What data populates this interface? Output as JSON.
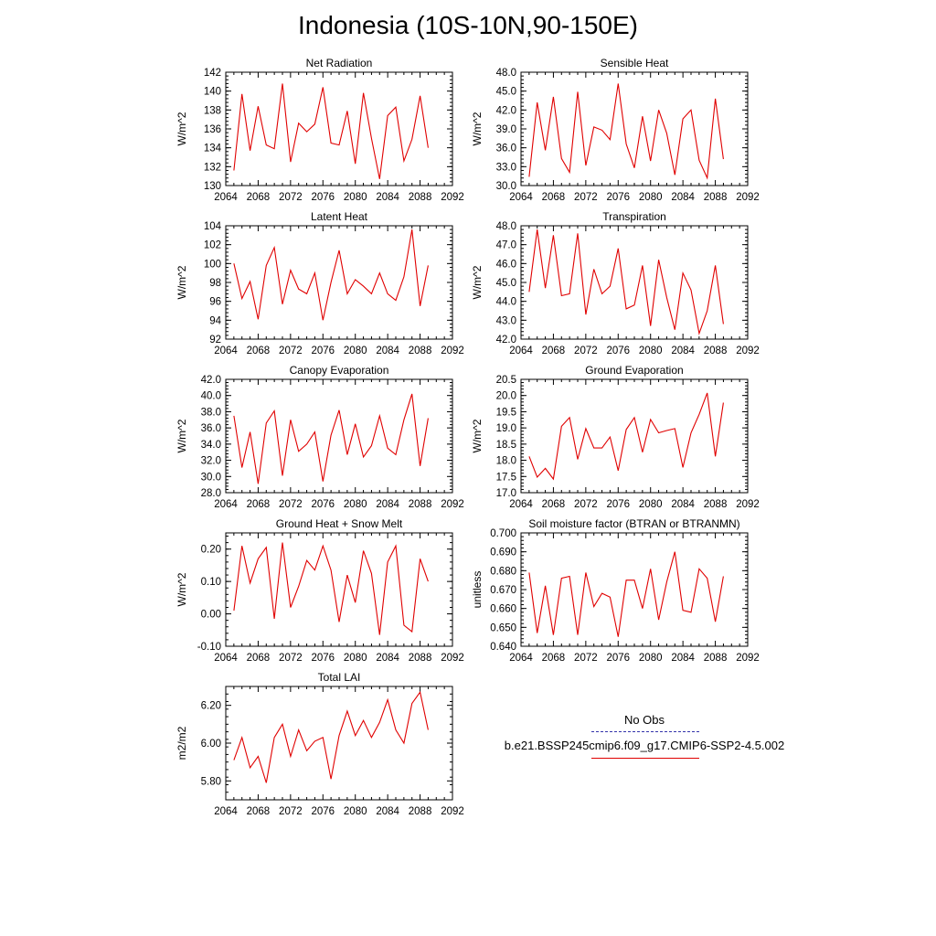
{
  "title": "Indonesia (10S-10N,90-150E)",
  "colors": {
    "model": "#e00000",
    "obs": "#3333aa",
    "axes": "#000000"
  },
  "chart_data": [
    {
      "type": "line",
      "title": "Net Radiation",
      "ylabel": "W/m^2",
      "xlim": [
        2064,
        2092
      ],
      "xticks": [
        2064,
        2068,
        2072,
        2076,
        2080,
        2084,
        2088,
        2092
      ],
      "ylim": [
        130,
        142
      ],
      "yticks": [
        "130",
        "132",
        "134",
        "136",
        "138",
        "140",
        "142"
      ],
      "x": [
        2065,
        2066,
        2067,
        2068,
        2069,
        2070,
        2071,
        2072,
        2073,
        2074,
        2075,
        2076,
        2077,
        2078,
        2079,
        2080,
        2081,
        2082,
        2083,
        2084,
        2085,
        2086,
        2087,
        2088,
        2089
      ],
      "series": [
        {
          "name": "b.e21.BSSP245cmip6.f09_g17.CMIP6-SSP2-4.5.002",
          "values": [
            131.6,
            139.7,
            133.7,
            138.4,
            134.3,
            133.9,
            140.8,
            132.5,
            136.6,
            135.7,
            136.5,
            140.4,
            134.5,
            134.3,
            137.9,
            132.3,
            139.8,
            135.0,
            130.7,
            137.4,
            138.3,
            132.6,
            134.9,
            139.5,
            134.0
          ]
        }
      ]
    },
    {
      "type": "line",
      "title": "Sensible Heat",
      "ylabel": "W/m^2",
      "xlim": [
        2064,
        2092
      ],
      "xticks": [
        2064,
        2068,
        2072,
        2076,
        2080,
        2084,
        2088,
        2092
      ],
      "ylim": [
        30,
        48
      ],
      "yticks": [
        "30.0",
        "33.0",
        "36.0",
        "39.0",
        "42.0",
        "45.0",
        "48.0"
      ],
      "x": [
        2065,
        2066,
        2067,
        2068,
        2069,
        2070,
        2071,
        2072,
        2073,
        2074,
        2075,
        2076,
        2077,
        2078,
        2079,
        2080,
        2081,
        2082,
        2083,
        2084,
        2085,
        2086,
        2087,
        2088,
        2089
      ],
      "series": [
        {
          "name": "b.e21.BSSP245cmip6.f09_g17.CMIP6-SSP2-4.5.002",
          "values": [
            31.4,
            43.2,
            35.6,
            44.1,
            34.3,
            32.1,
            44.9,
            33.2,
            39.3,
            38.8,
            37.3,
            46.2,
            36.6,
            32.8,
            41.0,
            33.9,
            42.0,
            38.3,
            31.7,
            40.6,
            42.0,
            34.0,
            31.2,
            43.8,
            34.2
          ]
        }
      ]
    },
    {
      "type": "line",
      "title": "Latent Heat",
      "ylabel": "W/m^2",
      "xlim": [
        2064,
        2092
      ],
      "xticks": [
        2064,
        2068,
        2072,
        2076,
        2080,
        2084,
        2088,
        2092
      ],
      "ylim": [
        92,
        104
      ],
      "yticks": [
        "92",
        "94",
        "96",
        "98",
        "100",
        "102",
        "104"
      ],
      "x": [
        2065,
        2066,
        2067,
        2068,
        2069,
        2070,
        2071,
        2072,
        2073,
        2074,
        2075,
        2076,
        2077,
        2078,
        2079,
        2080,
        2081,
        2082,
        2083,
        2084,
        2085,
        2086,
        2087,
        2088,
        2089
      ],
      "series": [
        {
          "name": "b.e21.BSSP245cmip6.f09_g17.CMIP6-SSP2-4.5.002",
          "values": [
            100.0,
            96.3,
            98.1,
            94.1,
            99.8,
            101.7,
            95.7,
            99.3,
            97.3,
            96.8,
            99.0,
            94.0,
            98.0,
            101.4,
            96.8,
            98.3,
            97.6,
            96.8,
            99.0,
            96.8,
            96.1,
            98.6,
            103.6,
            95.5,
            99.8
          ]
        }
      ]
    },
    {
      "type": "line",
      "title": "Transpiration",
      "ylabel": "W/m^2",
      "xlim": [
        2064,
        2092
      ],
      "xticks": [
        2064,
        2068,
        2072,
        2076,
        2080,
        2084,
        2088,
        2092
      ],
      "ylim": [
        42,
        48
      ],
      "yticks": [
        "42.0",
        "43.0",
        "44.0",
        "45.0",
        "46.0",
        "47.0",
        "48.0"
      ],
      "x": [
        2065,
        2066,
        2067,
        2068,
        2069,
        2070,
        2071,
        2072,
        2073,
        2074,
        2075,
        2076,
        2077,
        2078,
        2079,
        2080,
        2081,
        2082,
        2083,
        2084,
        2085,
        2086,
        2087,
        2088,
        2089
      ],
      "series": [
        {
          "name": "b.e21.BSSP245cmip6.f09_g17.CMIP6-SSP2-4.5.002",
          "values": [
            44.5,
            47.8,
            44.7,
            47.5,
            44.3,
            44.4,
            47.6,
            43.3,
            45.7,
            44.4,
            44.8,
            46.8,
            43.6,
            43.8,
            45.9,
            42.7,
            46.2,
            44.2,
            42.5,
            45.5,
            44.6,
            42.3,
            43.5,
            45.9,
            42.8
          ]
        }
      ]
    },
    {
      "type": "line",
      "title": "Canopy Evaporation",
      "ylabel": "W/m^2",
      "xlim": [
        2064,
        2092
      ],
      "xticks": [
        2064,
        2068,
        2072,
        2076,
        2080,
        2084,
        2088,
        2092
      ],
      "ylim": [
        28,
        42
      ],
      "yticks": [
        "28.0",
        "30.0",
        "32.0",
        "34.0",
        "36.0",
        "38.0",
        "40.0",
        "42.0"
      ],
      "x": [
        2065,
        2066,
        2067,
        2068,
        2069,
        2070,
        2071,
        2072,
        2073,
        2074,
        2075,
        2076,
        2077,
        2078,
        2079,
        2080,
        2081,
        2082,
        2083,
        2084,
        2085,
        2086,
        2087,
        2088,
        2089
      ],
      "series": [
        {
          "name": "b.e21.BSSP245cmip6.f09_g17.CMIP6-SSP2-4.5.002",
          "values": [
            37.5,
            31.1,
            35.5,
            29.1,
            36.6,
            38.1,
            30.1,
            37.0,
            33.1,
            34.0,
            35.5,
            29.4,
            35.1,
            38.2,
            32.7,
            36.5,
            32.4,
            33.8,
            37.5,
            33.5,
            32.7,
            37.0,
            40.2,
            31.3,
            37.2
          ]
        }
      ]
    },
    {
      "type": "line",
      "title": "Ground Evaporation",
      "ylabel": "W/m^2",
      "xlim": [
        2064,
        2092
      ],
      "xticks": [
        2064,
        2068,
        2072,
        2076,
        2080,
        2084,
        2088,
        2092
      ],
      "ylim": [
        17,
        20.5
      ],
      "yticks": [
        "17.0",
        "17.5",
        "18.0",
        "18.5",
        "19.0",
        "19.5",
        "20.0",
        "20.5"
      ],
      "x": [
        2065,
        2066,
        2067,
        2068,
        2069,
        2070,
        2071,
        2072,
        2073,
        2074,
        2075,
        2076,
        2077,
        2078,
        2079,
        2080,
        2081,
        2082,
        2083,
        2084,
        2085,
        2086,
        2087,
        2088,
        2089
      ],
      "series": [
        {
          "name": "b.e21.BSSP245cmip6.f09_g17.CMIP6-SSP2-4.5.002",
          "values": [
            18.12,
            17.48,
            17.75,
            17.42,
            19.05,
            19.32,
            18.03,
            18.98,
            18.38,
            18.38,
            18.72,
            17.68,
            18.95,
            19.32,
            18.25,
            19.26,
            18.85,
            18.92,
            18.98,
            17.78,
            18.85,
            19.42,
            20.08,
            18.12,
            19.78
          ]
        }
      ]
    },
    {
      "type": "line",
      "title": "Ground Heat + Snow Melt",
      "ylabel": "W/m^2",
      "xlim": [
        2064,
        2092
      ],
      "xticks": [
        2064,
        2068,
        2072,
        2076,
        2080,
        2084,
        2088,
        2092
      ],
      "ylim": [
        -0.1,
        0.25
      ],
      "yticks": [
        "-0.10",
        "0.00",
        "0.10",
        "0.20"
      ],
      "ytick_values": [
        -0.1,
        0.0,
        0.1,
        0.2
      ],
      "x": [
        2065,
        2066,
        2067,
        2068,
        2069,
        2070,
        2071,
        2072,
        2073,
        2074,
        2075,
        2076,
        2077,
        2078,
        2079,
        2080,
        2081,
        2082,
        2083,
        2084,
        2085,
        2086,
        2087,
        2088,
        2089
      ],
      "series": [
        {
          "name": "b.e21.BSSP245cmip6.f09_g17.CMIP6-SSP2-4.5.002",
          "values": [
            0.01,
            0.21,
            0.095,
            0.17,
            0.205,
            -0.015,
            0.22,
            0.02,
            0.085,
            0.165,
            0.135,
            0.21,
            0.135,
            -0.025,
            0.12,
            0.035,
            0.195,
            0.125,
            -0.065,
            0.16,
            0.21,
            -0.035,
            -0.055,
            0.17,
            0.1
          ]
        }
      ]
    },
    {
      "type": "line",
      "title": "Soil moisture factor (BTRAN or BTRANMN)",
      "ylabel": "unitless",
      "xlim": [
        2064,
        2092
      ],
      "xticks": [
        2064,
        2068,
        2072,
        2076,
        2080,
        2084,
        2088,
        2092
      ],
      "ylim": [
        0.64,
        0.7
      ],
      "yticks": [
        "0.640",
        "0.650",
        "0.660",
        "0.670",
        "0.680",
        "0.690",
        "0.700"
      ],
      "x": [
        2065,
        2066,
        2067,
        2068,
        2069,
        2070,
        2071,
        2072,
        2073,
        2074,
        2075,
        2076,
        2077,
        2078,
        2079,
        2080,
        2081,
        2082,
        2083,
        2084,
        2085,
        2086,
        2087,
        2088,
        2089
      ],
      "series": [
        {
          "name": "b.e21.BSSP245cmip6.f09_g17.CMIP6-SSP2-4.5.002",
          "values": [
            0.679,
            0.647,
            0.672,
            0.646,
            0.676,
            0.677,
            0.646,
            0.679,
            0.661,
            0.668,
            0.666,
            0.645,
            0.675,
            0.675,
            0.66,
            0.681,
            0.654,
            0.674,
            0.69,
            0.659,
            0.658,
            0.681,
            0.676,
            0.653,
            0.677
          ]
        }
      ]
    },
    {
      "type": "line",
      "title": "Total LAI",
      "ylabel": "m2/m2",
      "xlim": [
        2064,
        2092
      ],
      "xticks": [
        2064,
        2068,
        2072,
        2076,
        2080,
        2084,
        2088,
        2092
      ],
      "ylim": [
        5.7,
        6.3
      ],
      "yticks": [
        "5.80",
        "6.00",
        "6.20"
      ],
      "ytick_values": [
        5.8,
        6.0,
        6.2
      ],
      "x": [
        2065,
        2066,
        2067,
        2068,
        2069,
        2070,
        2071,
        2072,
        2073,
        2074,
        2075,
        2076,
        2077,
        2078,
        2079,
        2080,
        2081,
        2082,
        2083,
        2084,
        2085,
        2086,
        2087,
        2088,
        2089
      ],
      "series": [
        {
          "name": "b.e21.BSSP245cmip6.f09_g17.CMIP6-SSP2-4.5.002",
          "values": [
            5.91,
            6.03,
            5.87,
            5.93,
            5.79,
            6.03,
            6.1,
            5.93,
            6.07,
            5.96,
            6.01,
            6.03,
            5.81,
            6.04,
            6.17,
            6.04,
            6.12,
            6.03,
            6.11,
            6.23,
            6.07,
            6.0,
            6.21,
            6.27,
            6.07
          ]
        }
      ]
    }
  ],
  "legend": {
    "obs_label": "No Obs",
    "model_label": "b.e21.BSSP245cmip6.f09_g17.CMIP6-SSP2-4.5.002"
  }
}
